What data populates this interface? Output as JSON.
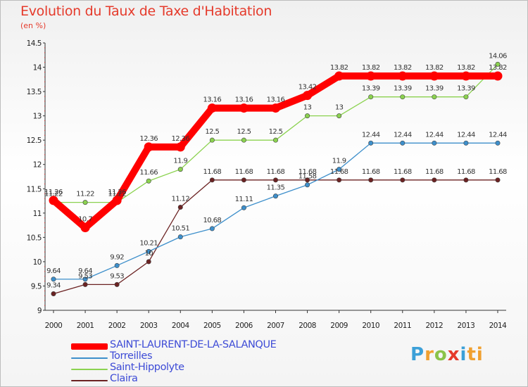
{
  "title": "Evolution du Taux de Taxe d'Habitation",
  "subtitle": "(en %)",
  "brand": [
    "P",
    "r",
    "o",
    "x",
    "i",
    "ti"
  ],
  "chart_data": {
    "type": "line",
    "categories": [
      "2000",
      "2001",
      "2002",
      "2003",
      "2004",
      "2005",
      "2006",
      "2007",
      "2008",
      "2009",
      "2010",
      "2011",
      "2012",
      "2013",
      "2014"
    ],
    "ylim": [
      9,
      14.5
    ],
    "yticks": [
      "9",
      "9.5",
      "10",
      "10.5",
      "11",
      "11.5",
      "12",
      "12.5",
      "13",
      "13.5",
      "14",
      "14.5"
    ],
    "grid": false,
    "legend_position": "bottom-left",
    "series": [
      {
        "name": "SAINT-LAURENT-DE-LA-SALANQUE",
        "color": "#ff0000",
        "values": [
          11.26,
          10.7,
          11.26,
          12.36,
          12.36,
          13.16,
          13.16,
          13.16,
          13.42,
          13.82,
          13.82,
          13.82,
          13.82,
          13.82,
          13.82
        ],
        "labels": [
          "11.26",
          "10.7",
          "11.26",
          "12.36",
          "12.36",
          "13.16",
          "13.16",
          "13.16",
          "13.42",
          "13.82",
          "13.82",
          "13.82",
          "13.82",
          "13.82",
          "13.82"
        ]
      },
      {
        "name": "Torreilles",
        "color": "#3d8fcb",
        "values": [
          9.64,
          9.64,
          9.92,
          10.21,
          10.51,
          10.68,
          11.11,
          11.35,
          11.58,
          11.9,
          12.44,
          12.44,
          12.44,
          12.44,
          12.44
        ],
        "labels": [
          "9.64",
          "9.64",
          "9.92",
          "10.21",
          "10.51",
          "10.68",
          "11.11",
          "11.35",
          "11.58",
          "11.9",
          "12.44",
          "12.44",
          "12.44",
          "12.44",
          "12.44"
        ]
      },
      {
        "name": "Saint-Hippolyte",
        "color": "#8bd24f",
        "values": [
          11.22,
          11.22,
          11.22,
          11.66,
          11.9,
          12.5,
          12.5,
          12.5,
          13,
          13,
          13.39,
          13.39,
          13.39,
          13.39,
          14.06
        ],
        "labels": [
          "11.22",
          "11.22",
          "11.22",
          "11.66",
          "11.9",
          "12.5",
          "12.5",
          "12.5",
          "13",
          "13",
          "13.39",
          "13.39",
          "13.39",
          "13.39",
          "14.06"
        ]
      },
      {
        "name": "Claira",
        "color": "#6b2222",
        "values": [
          9.34,
          9.53,
          9.53,
          10,
          11.12,
          11.68,
          11.68,
          11.68,
          11.68,
          11.68,
          11.68,
          11.68,
          11.68,
          11.68,
          11.68
        ],
        "labels": [
          "9.34",
          "9.53",
          "9.53",
          "10",
          "11.12",
          "11.68",
          "11.68",
          "11.68",
          "11.68",
          "11.68",
          "11.68",
          "11.68",
          "11.68",
          "11.68",
          "11.68"
        ]
      }
    ]
  }
}
